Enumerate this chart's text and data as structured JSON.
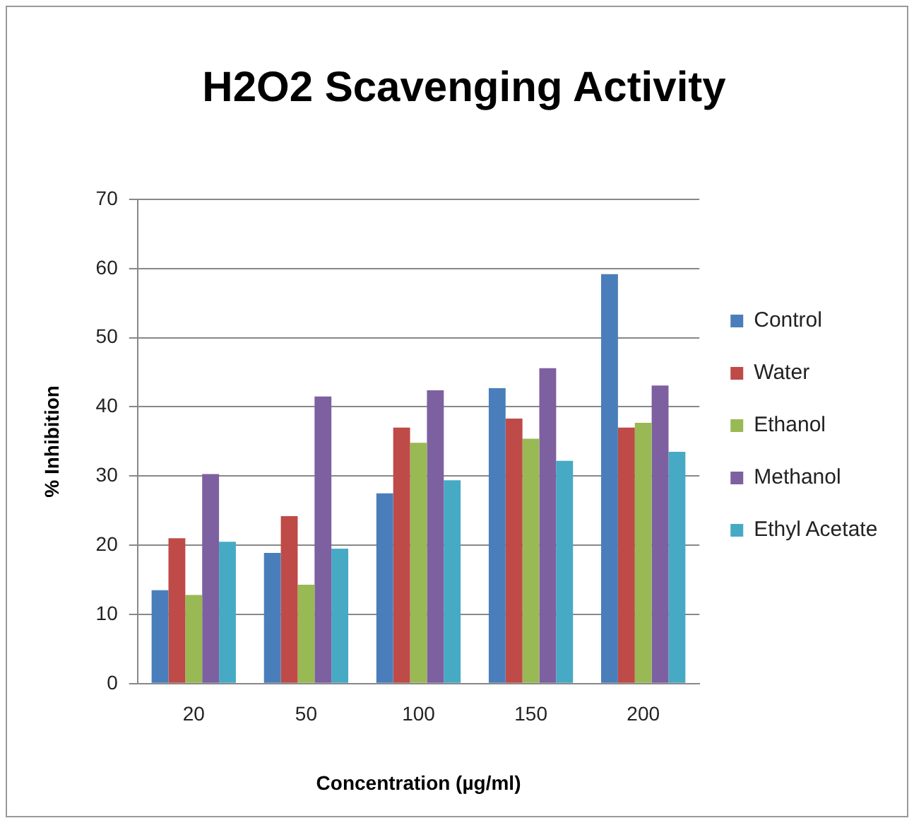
{
  "chart_data": {
    "type": "bar",
    "title": "H2O2 Scavenging Activity",
    "xlabel": "Concentration (µg/ml)",
    "ylabel": "% Inhibition",
    "categories": [
      "20",
      "50",
      "100",
      "150",
      "200"
    ],
    "series": [
      {
        "name": "Control",
        "color": "#4a7ebb",
        "values": [
          13.5,
          18.9,
          27.5,
          42.7,
          59.2
        ]
      },
      {
        "name": "Water",
        "color": "#be4b48",
        "values": [
          21.0,
          24.2,
          37.0,
          38.3,
          37.0
        ]
      },
      {
        "name": "Ethanol",
        "color": "#98b954",
        "values": [
          12.8,
          14.3,
          34.8,
          35.4,
          37.7
        ]
      },
      {
        "name": "Methanol",
        "color": "#7d60a0",
        "values": [
          30.3,
          41.5,
          42.4,
          45.6,
          43.1
        ]
      },
      {
        "name": "Ethyl Acetate",
        "color": "#46aac5",
        "values": [
          20.5,
          19.5,
          29.4,
          32.2,
          33.5
        ]
      }
    ],
    "ylim": [
      0,
      70
    ],
    "yticks": [
      0,
      10,
      20,
      30,
      40,
      50,
      60,
      70
    ],
    "grid": "y",
    "legend": "right"
  }
}
